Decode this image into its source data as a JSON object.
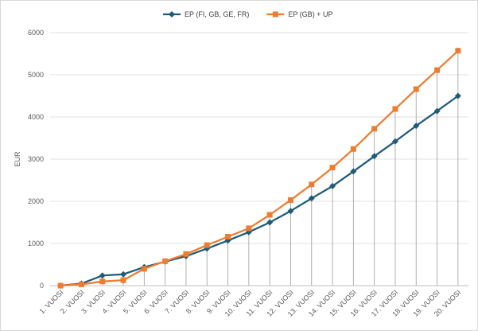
{
  "chart_data": {
    "type": "line",
    "title": "",
    "xlabel": "",
    "ylabel": "EUR",
    "ylim": [
      0,
      6000
    ],
    "yticks": [
      0,
      1000,
      2000,
      3000,
      4000,
      5000,
      6000
    ],
    "grid": "horizontal",
    "drop_lines": true,
    "legend_position": "top",
    "categories": [
      "1. VUOSI",
      "2. VUOSI",
      "3. VUOSI",
      "4. VUOSI",
      "5. VUOSI",
      "6. VUOSI",
      "7. VUOSI",
      "8. VUOSI",
      "9. VUOSI",
      "10. VUOSI",
      "11. VUOSI",
      "12. VUOSI",
      "13. VUOSI",
      "14. VUOSI",
      "15. VUOSI",
      "16. VUOSI",
      "17. VUOSI",
      "18. VUOSI",
      "19. VUOSI",
      "20. VUOSI"
    ],
    "series": [
      {
        "name": "EP (FI, GB, GE, FR)",
        "color": "#1f5c7a",
        "marker": "diamond",
        "values": [
          0,
          50,
          240,
          270,
          440,
          570,
          700,
          880,
          1070,
          1270,
          1500,
          1770,
          2070,
          2360,
          2710,
          3070,
          3420,
          3790,
          4140,
          4500
        ]
      },
      {
        "name": "EP (GB) + UP",
        "color": "#ed7d31",
        "marker": "square",
        "values": [
          0,
          30,
          100,
          130,
          400,
          580,
          750,
          960,
          1160,
          1360,
          1680,
          2030,
          2400,
          2800,
          3240,
          3720,
          4190,
          4660,
          5110,
          5570
        ]
      }
    ]
  }
}
